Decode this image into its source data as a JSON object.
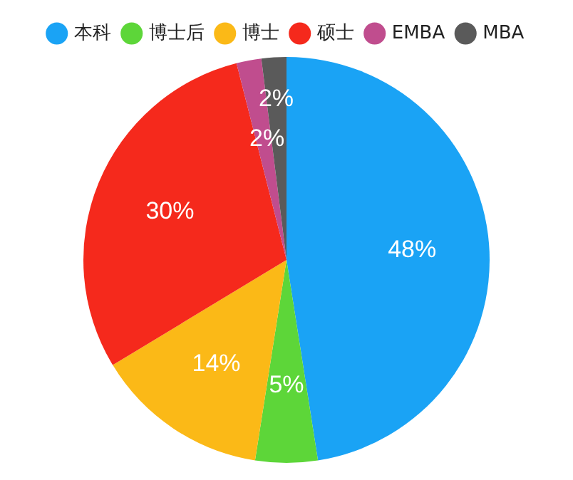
{
  "chart_data": {
    "type": "pie",
    "categories": [
      "本科",
      "博士后",
      "博士",
      "硕士",
      "EMBA",
      "MBA"
    ],
    "values": [
      48,
      5,
      14,
      30,
      2,
      2
    ],
    "colors": [
      "#1aa3f5",
      "#5dd639",
      "#fbb917",
      "#f5291c",
      "#c04d8e",
      "#5a5a5a"
    ],
    "value_labels": [
      "48%",
      "5%",
      "14%",
      "30%",
      "2%",
      "2%"
    ],
    "legend": "top"
  }
}
